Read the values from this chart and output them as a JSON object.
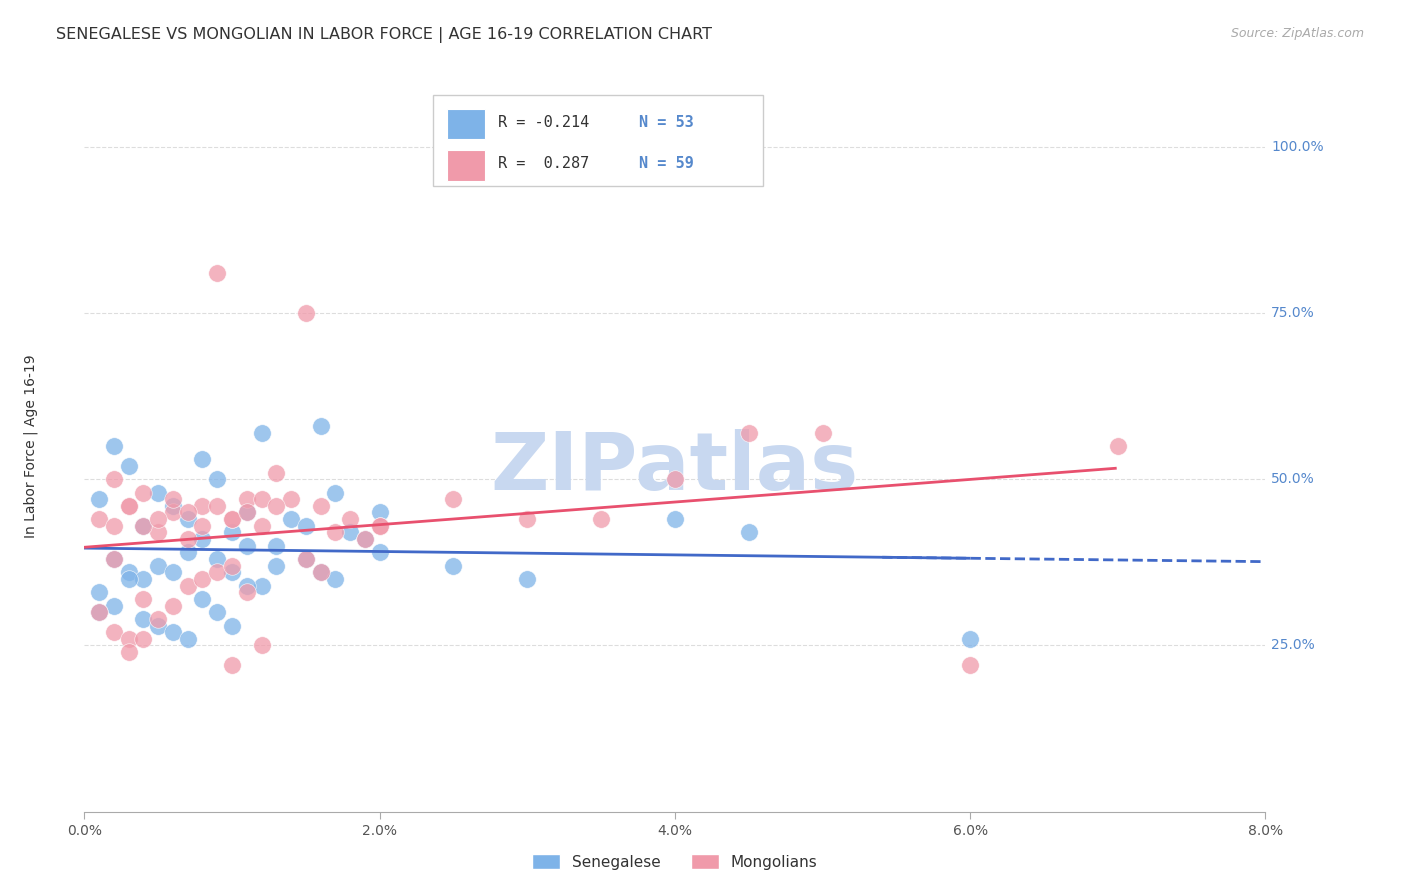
{
  "title": "SENEGALESE VS MONGOLIAN IN LABOR FORCE | AGE 16-19 CORRELATION CHART",
  "source": "Source: ZipAtlas.com",
  "xlabel_ticks": [
    "0.0%",
    "2.0%",
    "4.0%",
    "6.0%",
    "8.0%"
  ],
  "xlabel_vals": [
    0.0,
    0.02,
    0.04,
    0.06,
    0.08
  ],
  "ylabel_ticks": [
    "25.0%",
    "50.0%",
    "75.0%",
    "100.0%"
  ],
  "ylabel_vals": [
    0.25,
    0.5,
    0.75,
    1.0
  ],
  "xlim": [
    0.0,
    0.08
  ],
  "ylim": [
    0.0,
    1.1
  ],
  "senegalese_R": -0.214,
  "senegalese_N": 53,
  "mongolian_R": 0.287,
  "mongolian_N": 59,
  "blue_color": "#7eb3e8",
  "pink_color": "#f09aaa",
  "blue_line_color": "#4169c8",
  "pink_line_color": "#e8506e",
  "ylabel_color": "#5588cc",
  "watermark_color": "#c8d8f0",
  "background_color": "#ffffff",
  "grid_color": "#dddddd",
  "title_fontsize": 11.5,
  "axis_label_fontsize": 10,
  "tick_fontsize": 10,
  "senegalese_x": [
    0.001,
    0.002,
    0.003,
    0.004,
    0.005,
    0.006,
    0.007,
    0.008,
    0.009,
    0.01,
    0.011,
    0.012,
    0.013,
    0.014,
    0.015,
    0.016,
    0.017,
    0.018,
    0.019,
    0.02,
    0.002,
    0.003,
    0.004,
    0.005,
    0.006,
    0.007,
    0.008,
    0.009,
    0.01,
    0.011,
    0.012,
    0.013,
    0.001,
    0.002,
    0.003,
    0.004,
    0.005,
    0.006,
    0.007,
    0.008,
    0.009,
    0.01,
    0.011,
    0.015,
    0.016,
    0.017,
    0.02,
    0.025,
    0.03,
    0.04,
    0.045,
    0.06,
    0.001
  ],
  "senegalese_y": [
    0.47,
    0.55,
    0.52,
    0.43,
    0.48,
    0.46,
    0.44,
    0.53,
    0.5,
    0.42,
    0.45,
    0.57,
    0.4,
    0.44,
    0.43,
    0.58,
    0.48,
    0.42,
    0.41,
    0.45,
    0.38,
    0.36,
    0.35,
    0.37,
    0.36,
    0.39,
    0.41,
    0.38,
    0.36,
    0.4,
    0.34,
    0.37,
    0.33,
    0.31,
    0.35,
    0.29,
    0.28,
    0.27,
    0.26,
    0.32,
    0.3,
    0.28,
    0.34,
    0.38,
    0.36,
    0.35,
    0.39,
    0.37,
    0.35,
    0.44,
    0.42,
    0.26,
    0.3
  ],
  "mongolian_x": [
    0.001,
    0.002,
    0.003,
    0.004,
    0.005,
    0.006,
    0.007,
    0.008,
    0.009,
    0.01,
    0.011,
    0.012,
    0.013,
    0.014,
    0.015,
    0.016,
    0.017,
    0.018,
    0.019,
    0.02,
    0.002,
    0.003,
    0.004,
    0.005,
    0.006,
    0.007,
    0.008,
    0.009,
    0.01,
    0.011,
    0.012,
    0.013,
    0.001,
    0.002,
    0.003,
    0.004,
    0.005,
    0.006,
    0.007,
    0.008,
    0.009,
    0.01,
    0.011,
    0.015,
    0.016,
    0.02,
    0.025,
    0.03,
    0.035,
    0.04,
    0.045,
    0.05,
    0.06,
    0.07,
    0.002,
    0.003,
    0.004,
    0.01,
    0.012
  ],
  "mongolian_y": [
    0.44,
    0.43,
    0.46,
    0.48,
    0.42,
    0.45,
    0.41,
    0.46,
    0.81,
    0.44,
    0.47,
    0.43,
    0.51,
    0.47,
    0.75,
    0.46,
    0.42,
    0.44,
    0.41,
    0.43,
    0.5,
    0.46,
    0.43,
    0.44,
    0.47,
    0.45,
    0.43,
    0.46,
    0.44,
    0.45,
    0.47,
    0.46,
    0.3,
    0.27,
    0.26,
    0.32,
    0.29,
    0.31,
    0.34,
    0.35,
    0.36,
    0.37,
    0.33,
    0.38,
    0.36,
    0.43,
    0.47,
    0.44,
    0.44,
    0.5,
    0.57,
    0.57,
    0.22,
    0.55,
    0.38,
    0.24,
    0.26,
    0.22,
    0.25
  ]
}
